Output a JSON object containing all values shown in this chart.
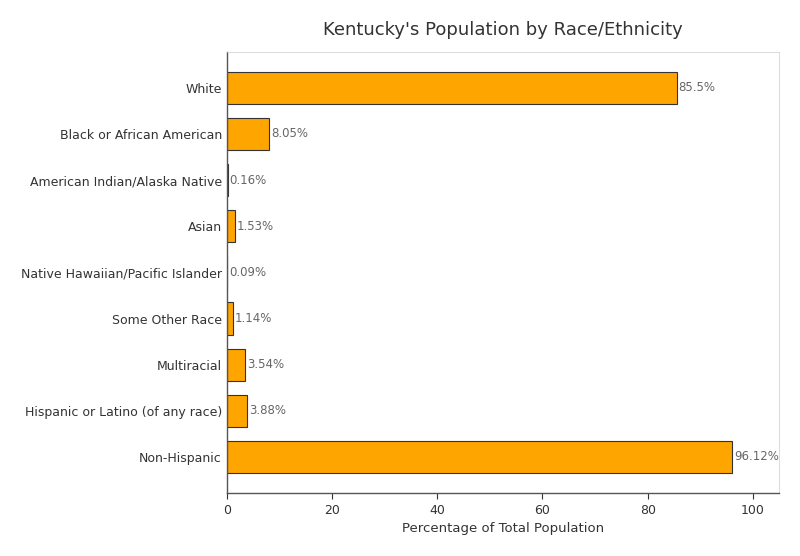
{
  "title": "Kentucky's Population by Race/Ethnicity",
  "xlabel": "Percentage of Total Population",
  "categories": [
    "Non-Hispanic",
    "Hispanic or Latino (of any race)",
    "Multiracial",
    "Some Other Race",
    "Native Hawaiian/Pacific Islander",
    "Asian",
    "American Indian/Alaska Native",
    "Black or African American",
    "White"
  ],
  "values": [
    96.12,
    3.88,
    3.54,
    1.14,
    0.09,
    1.53,
    0.16,
    8.05,
    85.5
  ],
  "labels": [
    "96.12%",
    "3.88%",
    "3.54%",
    "1.14%",
    "0.09%",
    "1.53%",
    "0.16%",
    "8.05%",
    "85.5%"
  ],
  "bar_color": "#FFA500",
  "bar_edgecolor": "#333333",
  "background_color": "#FFFFFF",
  "grid_color": "#FFFFFF",
  "title_fontsize": 13,
  "label_fontsize": 8.5,
  "tick_fontsize": 9,
  "xlim": [
    0,
    105
  ]
}
